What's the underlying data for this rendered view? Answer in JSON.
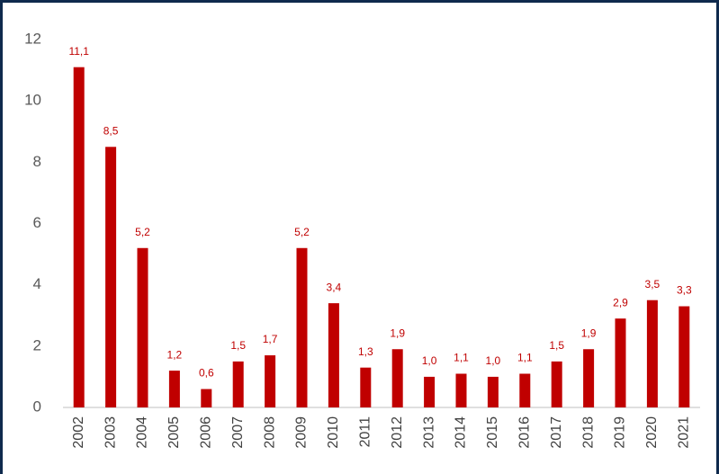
{
  "chart_data": {
    "type": "bar",
    "categories": [
      "2002",
      "2003",
      "2004",
      "2005",
      "2006",
      "2007",
      "2008",
      "2009",
      "2010",
      "2011",
      "2012",
      "2013",
      "2014",
      "2015",
      "2016",
      "2017",
      "2018",
      "2019",
      "2020",
      "2021"
    ],
    "values": [
      11.1,
      8.5,
      5.2,
      1.2,
      0.6,
      1.5,
      1.7,
      5.2,
      3.4,
      1.3,
      1.9,
      1.0,
      1.1,
      1.0,
      1.1,
      1.5,
      1.9,
      2.9,
      3.5,
      3.3
    ],
    "value_labels": [
      "11,1",
      "8,5",
      "5,2",
      "1,2",
      "0,6",
      "1,5",
      "1,7",
      "5,2",
      "3,4",
      "1,3",
      "1,9",
      "1,0",
      "1,1",
      "1,0",
      "1,1",
      "1,5",
      "1,9",
      "2,9",
      "3,5",
      "3,3"
    ],
    "color": "#c00000",
    "ylim": [
      0,
      12
    ],
    "yticks": [
      0,
      2,
      4,
      6,
      8,
      10,
      12
    ],
    "grid": false
  }
}
